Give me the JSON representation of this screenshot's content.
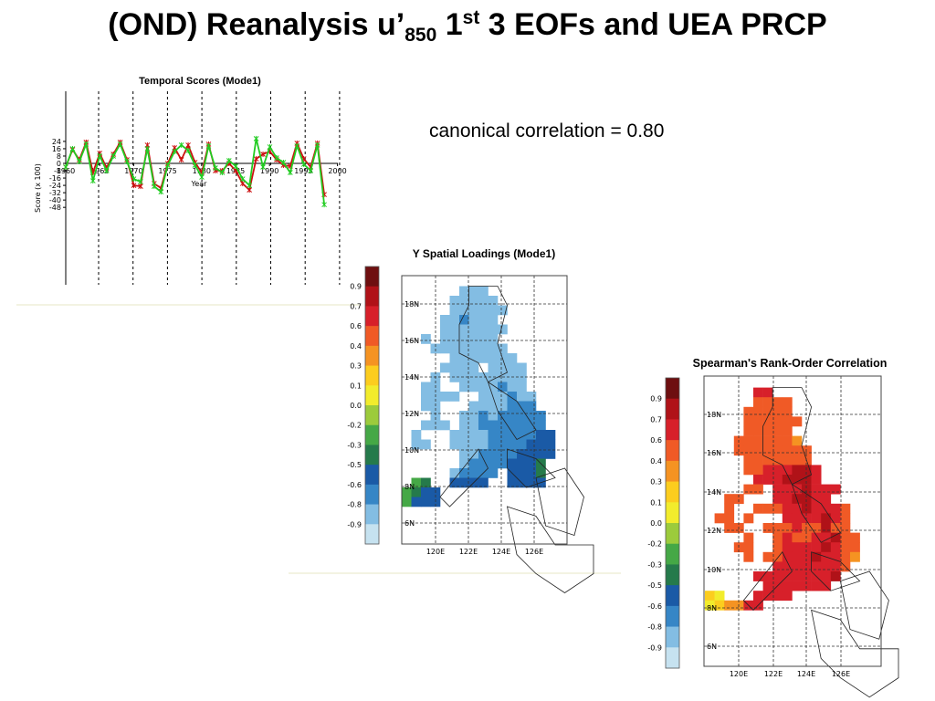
{
  "slide": {
    "title_main": "(OND) Reanalysis u’",
    "title_sub": "850",
    "title_num": " 1",
    "title_sup": "st",
    "title_rest": " 3 EOFs and UEA PRCP",
    "correlation_text": "canonical correlation = 0.80"
  },
  "chart_data": [
    {
      "type": "line",
      "title": "Temporal Scores (Mode1)",
      "xlabel": "Year",
      "ylabel": "Score (x 100)",
      "xlim": [
        1958,
        2000
      ],
      "ylim": [
        -50,
        30
      ],
      "x_ticks": [
        "1960",
        "1965",
        "1970",
        "1975",
        "1980",
        "1985",
        "1990",
        "1995",
        "2000"
      ],
      "y_ticks": [
        "24",
        "16",
        "8",
        "0",
        "-8",
        "-16",
        "-24",
        "-32",
        "-40",
        "-48"
      ],
      "x": [
        1960,
        1961,
        1962,
        1963,
        1964,
        1965,
        1966,
        1967,
        1968,
        1969,
        1970,
        1971,
        1972,
        1973,
        1974,
        1975,
        1976,
        1977,
        1978,
        1979,
        1980,
        1981,
        1982,
        1983,
        1984,
        1985,
        1986,
        1987,
        1988,
        1989,
        1990,
        1991,
        1992,
        1993,
        1994,
        1995,
        1996,
        1997,
        1998
      ],
      "series": [
        {
          "color": "#cc1111",
          "values": [
            -4,
            15,
            4,
            23,
            -10,
            11,
            -5,
            10,
            23,
            4,
            -24,
            -25,
            20,
            -22,
            -27,
            0,
            17,
            4,
            20,
            1,
            -10,
            21,
            -8,
            -8,
            0,
            -8,
            -22,
            -29,
            5,
            10,
            13,
            4,
            -2,
            -3,
            22,
            5,
            -4,
            22,
            -34
          ]
        },
        {
          "color": "#22cc22",
          "values": [
            -4,
            16,
            2,
            21,
            -19,
            8,
            -8,
            8,
            21,
            2,
            -17,
            -20,
            16,
            -25,
            -31,
            -2,
            13,
            20,
            14,
            -2,
            -15,
            19,
            -5,
            -10,
            3,
            -3,
            -17,
            -24,
            27,
            -4,
            18,
            6,
            1,
            -10,
            19,
            -1,
            -8,
            20,
            -45
          ]
        }
      ]
    },
    {
      "type": "heatmap",
      "title": "Y Spatial Loadings (Mode1)",
      "x_ticks": [
        "120E",
        "122E",
        "124E",
        "126E"
      ],
      "y_ticks": [
        "18N",
        "16N",
        "14N",
        "12N",
        "10N",
        "8N",
        "6N"
      ],
      "colorbar_labels": [
        "0.9",
        "0.7",
        "0.6",
        "0.4",
        "0.3",
        "0.1",
        "0.0",
        "-0.2",
        "-0.3",
        "-0.5",
        "-0.6",
        "-0.8",
        "-0.9"
      ],
      "colorbar_colors": [
        "#6e0f10",
        "#b01218",
        "#d7202a",
        "#f05a26",
        "#f59322",
        "#fccd1e",
        "#f2ec2c",
        "#9ccb3c",
        "#45a846",
        "#257a4b",
        "#1a5aa6",
        "#3686c6",
        "#83bde3",
        "#c6e2f0"
      ]
    },
    {
      "type": "heatmap",
      "title": "Spearman's Rank-Order Correlation",
      "x_ticks": [
        "120E",
        "122E",
        "124E",
        "126E"
      ],
      "y_ticks": [
        "18N",
        "16N",
        "14N",
        "12N",
        "10N",
        "8N",
        "6N"
      ],
      "colorbar_labels": [
        "0.9",
        "0.7",
        "0.6",
        "0.4",
        "0.3",
        "0.1",
        "0.0",
        "-0.2",
        "-0.3",
        "-0.5",
        "-0.6",
        "-0.8",
        "-0.9"
      ],
      "colorbar_colors": [
        "#6e0f10",
        "#b01218",
        "#d7202a",
        "#f05a26",
        "#f59322",
        "#fccd1e",
        "#f2ec2c",
        "#9ccb3c",
        "#45a846",
        "#257a4b",
        "#1a5aa6",
        "#3686c6",
        "#83bde3",
        "#c6e2f0"
      ]
    }
  ]
}
